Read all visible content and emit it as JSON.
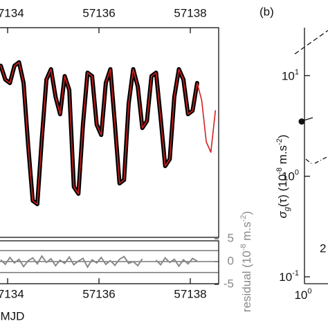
{
  "chart_data": [
    {
      "type": "line",
      "x": [
        57133.85,
        57133.95,
        57134.05,
        57134.15,
        57134.25,
        57134.35,
        57134.45,
        57134.55,
        57134.65,
        57134.75,
        57134.85,
        57134.95,
        57135.05,
        57135.15,
        57135.25,
        57135.35,
        57135.45,
        57135.55,
        57135.65,
        57135.75,
        57135.85,
        57135.95,
        57136.05,
        57136.15,
        57136.25,
        57136.35,
        57136.45,
        57136.55,
        57136.65,
        57136.75,
        57136.85,
        57136.95,
        57137.05,
        57137.15,
        57137.25,
        57137.35,
        57137.45,
        57137.55,
        57137.65,
        57137.75,
        57137.85,
        57137.95,
        57138.05,
        57138.15,
        57138.25,
        57138.35,
        57138.45,
        57138.55
      ],
      "series": [
        {
          "name": "observed",
          "color": "#000000",
          "values": [
            248,
            228,
            223,
            248,
            253,
            223,
            133,
            53,
            48,
            143,
            228,
            243,
            203,
            178,
            233,
            213,
            73,
            63,
            163,
            238,
            233,
            163,
            148,
            223,
            243,
            163,
            78,
            83,
            193,
            243,
            218,
            158,
            168,
            233,
            238,
            173,
            103,
            113,
            203,
            243,
            228,
            178,
            183,
            223,
            null,
            null,
            null,
            null
          ]
        },
        {
          "name": "model",
          "color": "#d42020",
          "values": [
            248,
            228,
            223,
            248,
            253,
            223,
            133,
            53,
            48,
            143,
            228,
            243,
            203,
            178,
            233,
            213,
            73,
            63,
            163,
            238,
            233,
            163,
            148,
            223,
            243,
            163,
            78,
            83,
            193,
            243,
            218,
            158,
            168,
            233,
            238,
            173,
            103,
            113,
            203,
            243,
            228,
            178,
            183,
            223,
            198,
            138,
            123,
            183
          ]
        }
      ],
      "xlim": [
        57133.833,
        57138.621
      ],
      "ylim": [
        0,
        303
      ],
      "xticks": [
        57134,
        57136,
        57138
      ],
      "xlabel": "MJD"
    },
    {
      "type": "line",
      "x": [
        57133.85,
        57133.95,
        57134.05,
        57134.15,
        57134.25,
        57134.35,
        57134.45,
        57134.55,
        57134.65,
        57134.75,
        57134.85,
        57134.95,
        57135.05,
        57135.15,
        57135.25,
        57135.35,
        57135.45,
        57135.55,
        57135.65,
        57135.75,
        57135.85,
        57135.95,
        57136.05,
        57136.15,
        57136.25,
        57136.35,
        57136.45,
        57136.55,
        57136.65,
        57136.75,
        57136.85,
        57136.95,
        57137.05,
        57137.15,
        57137.25,
        57137.35,
        57137.45,
        57137.55,
        57137.65,
        57137.75,
        57137.85,
        57137.95,
        57138.05,
        57138.15
      ],
      "series": [
        {
          "name": "residual",
          "color": "#888888",
          "values": [
            0.4,
            -0.6,
            0.9,
            -0.3,
            0.5,
            -1.1,
            0.2,
            0.8,
            -0.5,
            1.2,
            -0.2,
            0.6,
            -0.9,
            0.3,
            -0.4,
            1.0,
            -0.7,
            0.1,
            0.7,
            -1.2,
            0.4,
            -0.3,
            0.9,
            -0.6,
            0.2,
            -0.8,
            0.5,
            1.1,
            -0.4,
            0.0,
            -0.9,
            0.6,
            null,
            null,
            0.3,
            -0.7,
            0.8,
            -0.2,
            0.5,
            -1.0,
            0.4,
            -0.5,
            0.7,
            0.1
          ]
        }
      ],
      "reference_lines": [
        2.4,
        0,
        -2.4
      ],
      "xlim": [
        57133.833,
        57138.621
      ],
      "ylim": [
        -5,
        5
      ],
      "xticks": [
        57134,
        57136,
        57138
      ],
      "yticks": [
        5,
        0,
        -5
      ],
      "ylabel": [
        "residual (10",
        "-8",
        " m.s",
        "-2",
        ")"
      ]
    },
    {
      "type": "scatter",
      "log_y": true,
      "panel_label": "(b)",
      "x": [
        1
      ],
      "values": [
        3.5
      ],
      "ylim": [
        0.1,
        30
      ],
      "yticks": [
        {
          "value": 10,
          "label": "10^1"
        },
        {
          "value": 1,
          "label": "10^0"
        },
        {
          "value": 0.1,
          "label": "10^-1"
        }
      ],
      "xticks": [
        {
          "value": 1,
          "label": "10^0"
        }
      ],
      "ylabel": [
        "σ",
        "g",
        "(τ) (10",
        "-8",
        " m.s",
        "-2",
        ")"
      ],
      "annotation": "2"
    }
  ]
}
